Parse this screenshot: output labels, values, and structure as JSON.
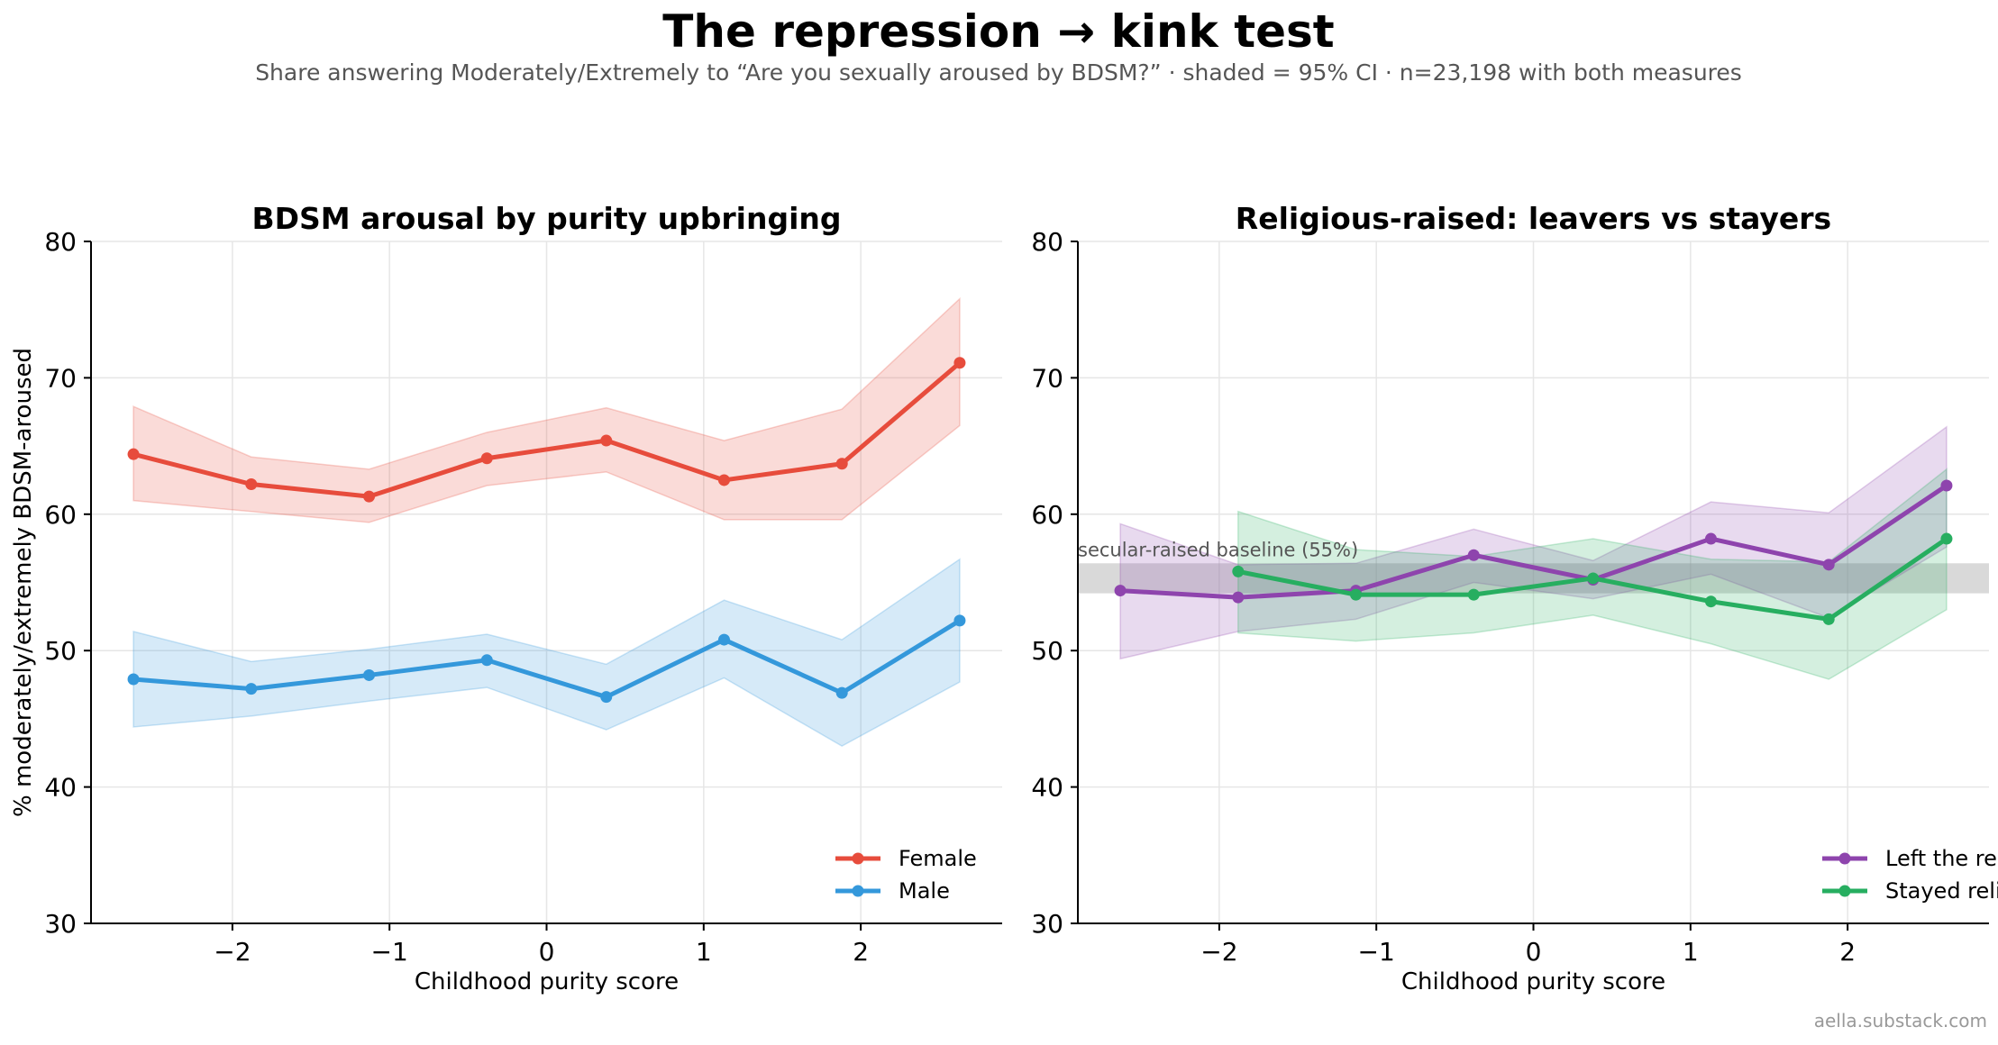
{
  "title": "The repression → kink test",
  "subtitle": "Share answering Moderately/Extremely to “Are you sexually aroused by BDSM?” · shaded = 95% CI · n=23,198 with both measures",
  "credit": "aella.substack.com",
  "chart_data": [
    {
      "type": "line",
      "title": "BDSM arousal by purity upbringing",
      "xlabel": "Childhood purity score",
      "ylabel": "% moderately/extremely BDSM-aroused",
      "xlim": [
        -2.9,
        2.9
      ],
      "ylim": [
        30,
        80
      ],
      "xticks": [
        -2,
        -1,
        0,
        1,
        2
      ],
      "yticks": [
        30,
        40,
        50,
        60,
        70,
        80
      ],
      "grid": true,
      "legend_position": "lower-right",
      "series": [
        {
          "name": "Female",
          "color": "#e74c3c",
          "x": [
            -2.63,
            -1.88,
            -1.13,
            -0.38,
            0.38,
            1.13,
            1.88,
            2.63
          ],
          "y": [
            64.4,
            62.2,
            61.3,
            64.1,
            65.4,
            62.5,
            63.7,
            71.1
          ],
          "ci_low": [
            61.0,
            60.2,
            59.4,
            62.1,
            63.1,
            59.6,
            59.6,
            66.5
          ],
          "ci_high": [
            67.9,
            64.2,
            63.3,
            66.0,
            67.8,
            65.4,
            67.7,
            75.8
          ]
        },
        {
          "name": "Male",
          "color": "#3498db",
          "x": [
            -2.63,
            -1.88,
            -1.13,
            -0.38,
            0.38,
            1.13,
            1.88,
            2.63
          ],
          "y": [
            47.9,
            47.2,
            48.2,
            49.3,
            46.6,
            50.8,
            46.9,
            52.2
          ],
          "ci_low": [
            44.4,
            45.2,
            46.3,
            47.3,
            44.2,
            48.0,
            43.0,
            47.7
          ],
          "ci_high": [
            51.4,
            49.2,
            50.1,
            51.2,
            49.0,
            53.7,
            50.8,
            56.7
          ]
        }
      ]
    },
    {
      "type": "line",
      "title": "Religious-raised: leavers vs stayers",
      "xlabel": "Childhood purity score",
      "ylabel": "",
      "xlim": [
        -2.9,
        2.9
      ],
      "ylim": [
        30,
        80
      ],
      "xticks": [
        -2,
        -1,
        0,
        1,
        2
      ],
      "yticks": [
        30,
        40,
        50,
        60,
        70,
        80
      ],
      "grid": true,
      "legend_position": "lower-right",
      "baseline": {
        "label": "secular-raised baseline (55%)",
        "low": 54.2,
        "high": 56.4,
        "color": "#aaaaaa"
      },
      "series": [
        {
          "name": "Left the religion",
          "color": "#8e44ad",
          "x": [
            -2.63,
            -1.88,
            -1.13,
            -0.38,
            0.38,
            1.13,
            1.88,
            2.63
          ],
          "y": [
            54.4,
            53.9,
            54.4,
            57.0,
            55.2,
            58.2,
            56.3,
            62.1
          ],
          "ci_low": [
            49.4,
            51.4,
            52.3,
            55.0,
            53.8,
            55.6,
            52.4,
            57.6
          ],
          "ci_high": [
            59.3,
            56.3,
            56.4,
            58.9,
            56.6,
            60.9,
            60.1,
            66.4
          ]
        },
        {
          "name": "Stayed religious",
          "color": "#27ae60",
          "x": [
            -1.88,
            -1.13,
            -0.38,
            0.38,
            1.13,
            1.88,
            2.63
          ],
          "y": [
            55.8,
            54.1,
            54.1,
            55.3,
            53.6,
            52.3,
            58.2
          ],
          "ci_low": [
            51.3,
            50.7,
            51.3,
            52.6,
            50.5,
            47.9,
            53.0
          ],
          "ci_high": [
            60.2,
            57.4,
            56.9,
            58.2,
            56.7,
            56.5,
            63.3
          ]
        }
      ]
    }
  ]
}
